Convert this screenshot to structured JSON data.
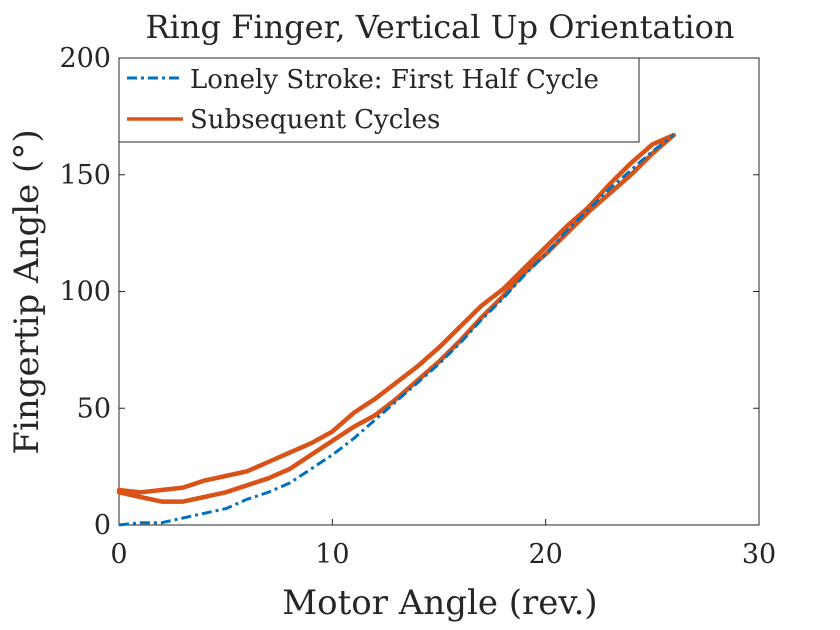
{
  "chart_data": {
    "type": "line",
    "title": "Ring Finger, Vertical Up Orientation",
    "xlabel": "Motor Angle (rev.)",
    "ylabel": "Fingertip Angle (°)",
    "xlim": [
      0,
      30
    ],
    "ylim": [
      0,
      200
    ],
    "xticks": [
      "0",
      "10",
      "20",
      "30"
    ],
    "yticks": [
      "0",
      "50",
      "100",
      "150",
      "200"
    ],
    "grid": false,
    "legend_position": "top-left",
    "series": [
      {
        "name": "Lonely Stroke: First Half Cycle",
        "color": "#0072BD",
        "style": "dash-dot",
        "x": [
          0,
          1,
          2,
          3,
          4,
          5,
          6,
          7,
          8,
          9,
          10,
          11,
          12,
          13,
          14,
          15,
          16,
          17,
          18,
          19,
          20,
          21,
          22,
          23,
          24,
          25,
          26
        ],
        "y": [
          0,
          1,
          1,
          3,
          5,
          7,
          11,
          14,
          18,
          24,
          30,
          37,
          45,
          53,
          61,
          69,
          78,
          88,
          97,
          107,
          116,
          126,
          135,
          144,
          152,
          160,
          167
        ]
      },
      {
        "name": "Subsequent Cycles",
        "color": "#D95319",
        "style": "solid",
        "x": [
          0,
          1,
          2,
          3,
          4,
          5,
          6,
          7,
          8,
          9,
          10,
          11,
          12,
          13,
          14,
          15,
          16,
          17,
          18,
          19,
          20,
          21,
          22,
          23,
          24,
          25,
          26
        ],
        "y_upper": [
          15,
          14,
          15,
          16,
          19,
          21,
          23,
          27,
          31,
          35,
          40,
          48,
          54,
          61,
          68,
          76,
          85,
          94,
          101,
          110,
          119,
          128,
          136,
          146,
          155,
          163,
          167
        ],
        "y_lower": [
          14,
          12,
          10,
          10,
          12,
          14,
          17,
          20,
          24,
          30,
          36,
          42,
          47,
          54,
          62,
          70,
          79,
          89,
          98,
          108,
          116,
          125,
          134,
          142,
          150,
          159,
          167
        ]
      }
    ]
  }
}
